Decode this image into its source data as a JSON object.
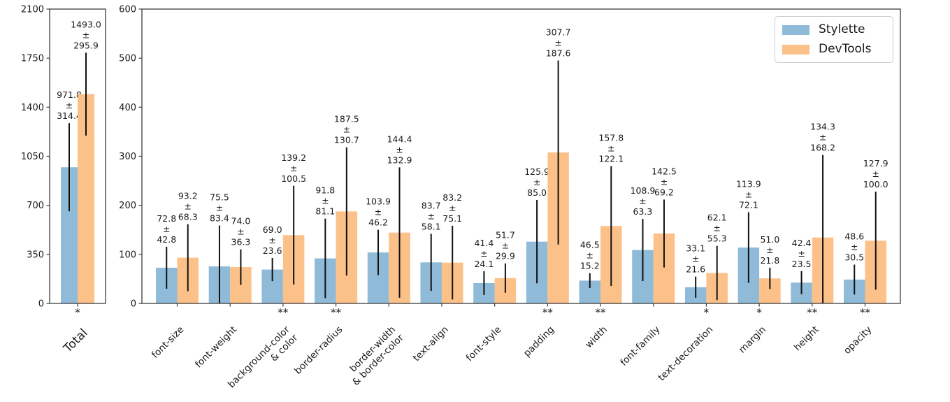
{
  "colors": {
    "stylette": "#8fbbd9",
    "devtools": "#fbc189",
    "error_bar": "#111111",
    "axis": "#3c3c3c",
    "text": "#1a1a1a"
  },
  "legend": {
    "items": [
      {
        "label": "Stylette",
        "color_key": "stylette"
      },
      {
        "label": "DevTools",
        "color_key": "devtools"
      }
    ]
  },
  "chart_data": [
    {
      "type": "bar",
      "title": "",
      "xlabel": "",
      "ylabel": "",
      "categories": [
        "Total"
      ],
      "ylim": [
        0,
        2100
      ],
      "yticks": [
        0,
        350,
        700,
        1050,
        1400,
        1750,
        2100
      ],
      "grid": false,
      "series": [
        {
          "name": "Stylette",
          "values": [
            971.8
          ],
          "errors": [
            314.4
          ]
        },
        {
          "name": "DevTools",
          "values": [
            1493.0
          ],
          "errors": [
            295.9
          ]
        }
      ],
      "significance": [
        "*"
      ],
      "annotation_format": "value ± error"
    },
    {
      "type": "bar",
      "title": "",
      "xlabel": "",
      "ylabel": "",
      "categories": [
        "font-size",
        "font-weight",
        "background-color\n& color",
        "border-radius",
        "border-width\n& border-color",
        "text-align",
        "font-style",
        "padding",
        "width",
        "font-family",
        "text-decoration",
        "margin",
        "height",
        "opacity"
      ],
      "ylim": [
        0,
        600
      ],
      "yticks": [
        0,
        100,
        200,
        300,
        400,
        500,
        600
      ],
      "grid": false,
      "series": [
        {
          "name": "Stylette",
          "values": [
            72.8,
            75.5,
            69.0,
            91.8,
            103.9,
            83.7,
            41.4,
            125.9,
            46.5,
            108.9,
            33.1,
            113.9,
            42.4,
            48.6
          ],
          "errors": [
            42.8,
            83.4,
            23.6,
            81.1,
            46.2,
            58.1,
            24.1,
            85.0,
            15.2,
            63.3,
            21.6,
            72.1,
            23.5,
            30.5
          ]
        },
        {
          "name": "DevTools",
          "values": [
            93.2,
            74.0,
            139.2,
            187.5,
            144.4,
            83.2,
            51.7,
            307.7,
            157.8,
            142.5,
            62.1,
            51.0,
            134.3,
            127.9
          ],
          "errors": [
            68.3,
            36.3,
            100.5,
            130.7,
            132.9,
            75.1,
            29.9,
            187.6,
            122.1,
            69.2,
            55.3,
            21.8,
            168.2,
            100.0
          ]
        }
      ],
      "significance": [
        "",
        "",
        "**",
        "**",
        "",
        "",
        "",
        "**",
        "**",
        "",
        "*",
        "*",
        "**",
        "**"
      ],
      "annotation_format": "value ± error",
      "legend_position": "upper right"
    }
  ]
}
